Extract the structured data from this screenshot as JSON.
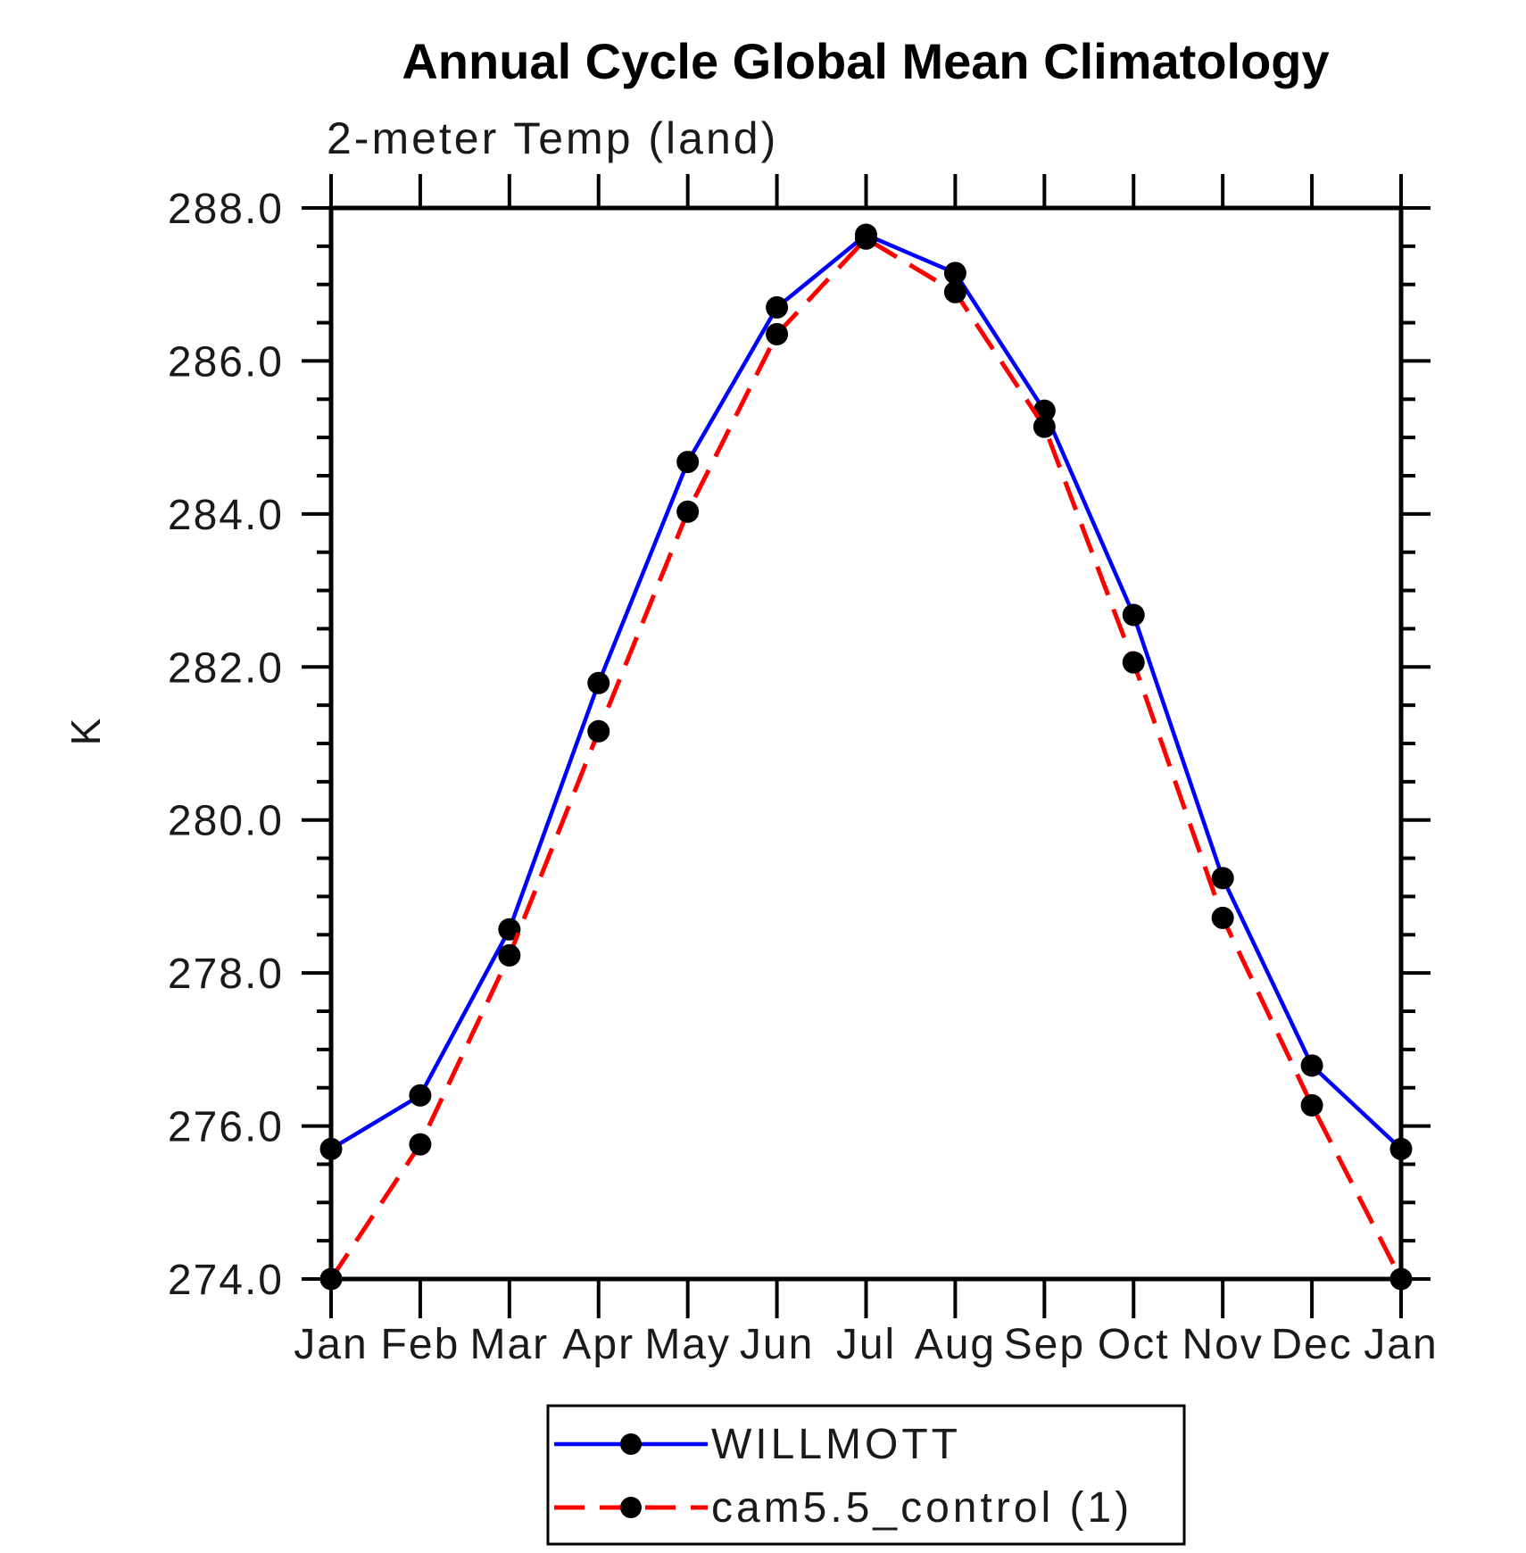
{
  "chart_data": {
    "type": "line",
    "title": "Annual Cycle Global Mean Climatology",
    "subtitle": "2-meter Temp (land)",
    "ylabel": "K",
    "ylim": [
      274.0,
      288.0
    ],
    "y_major_step": 2.0,
    "y_minor_step": 0.5,
    "y_tick_labels": [
      "274.0",
      "276.0",
      "278.0",
      "280.0",
      "282.0",
      "284.0",
      "286.0",
      "288.0"
    ],
    "x_tick_labels": [
      "Jan",
      "Feb",
      "Mar",
      "Apr",
      "May",
      "Jun",
      "Jul",
      "Aug",
      "Sep",
      "Oct",
      "Nov",
      "Dec",
      "Jan"
    ],
    "grid": false,
    "legend_position": "bottom-center",
    "series": [
      {
        "name": "WILLMOTT",
        "color": "#0000ff",
        "style": "solid",
        "marker": "circle",
        "marker_color": "#000000",
        "values": [
          275.7,
          276.4,
          278.57,
          281.79,
          284.68,
          286.7,
          287.65,
          287.15,
          285.35,
          282.68,
          279.24,
          276.79,
          275.7
        ]
      },
      {
        "name": "cam5.5_control (1)",
        "color": "#ff0000",
        "style": "dashed",
        "marker": "circle",
        "marker_color": "#000000",
        "values": [
          274.0,
          275.76,
          278.23,
          281.16,
          284.03,
          286.35,
          287.6,
          286.9,
          285.14,
          282.06,
          278.72,
          276.27,
          274.0
        ]
      }
    ]
  }
}
